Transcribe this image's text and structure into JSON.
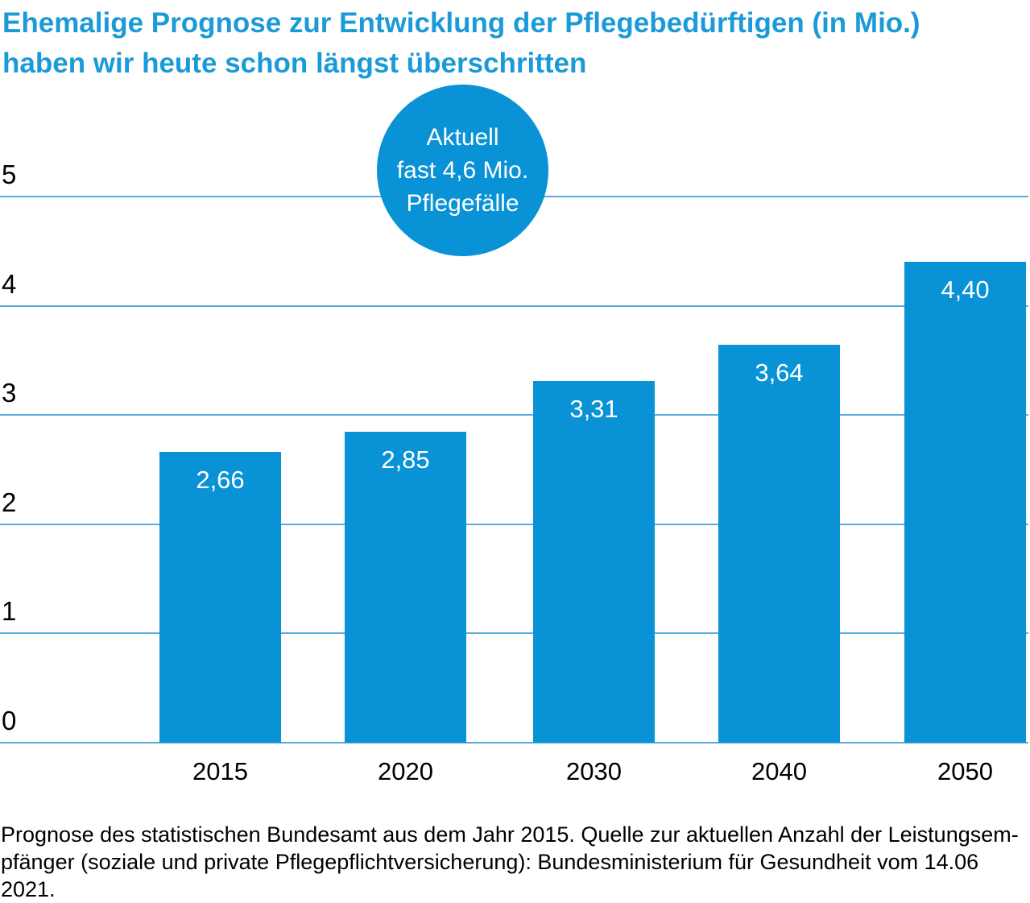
{
  "title": {
    "line1": "Ehemalige Prognose zur Entwicklung der Pflegebedürftigen (in Mio.)",
    "line2": "haben wir heute schon längst überschritten"
  },
  "badge": {
    "line1": "Aktuell",
    "line2": "fast 4,6 Mio.",
    "line3": "Pflegefälle"
  },
  "footer": {
    "line1": "Prognose des statistischen Bundesamt aus dem Jahr 2015. Quelle zur aktuellen Anzahl der Leistungsem-",
    "line2": "pfänger (soziale und private Pflegepflichtversicherung): Bundesministerium für Gesundheit vom 14.06 2021."
  },
  "colors": {
    "brand_blue": "#0a92d6",
    "title_blue": "#1b9ad8",
    "gridline_blue": "#58acdc",
    "text_black": "#000000",
    "bar_label_white": "#ffffff"
  },
  "chart_data": {
    "type": "bar",
    "title": "Ehemalige Prognose zur Entwicklung der Pflegebedürftigen (in Mio.) haben wir heute schon längst überschritten",
    "categories": [
      "2015",
      "2020",
      "2030",
      "2040",
      "2050"
    ],
    "values": [
      2.66,
      2.85,
      3.31,
      3.64,
      4.4
    ],
    "value_labels": [
      "2,66",
      "2,85",
      "3,31",
      "3,64",
      "4,40"
    ],
    "xlabel": "",
    "ylabel": "",
    "ylim": [
      0,
      5
    ],
    "yticks": [
      0,
      1,
      2,
      3,
      4,
      5
    ],
    "grid": true,
    "legend": false,
    "annotation": "Aktuell fast 4,6 Mio. Pflegefälle",
    "source_note": "Prognose des statistischen Bundesamt aus dem Jahr 2015. Quelle zur aktuellen Anzahl der Leistungsempfänger (soziale und private Pflegepflichtversicherung): Bundesministerium für Gesundheit vom 14.06 2021."
  }
}
